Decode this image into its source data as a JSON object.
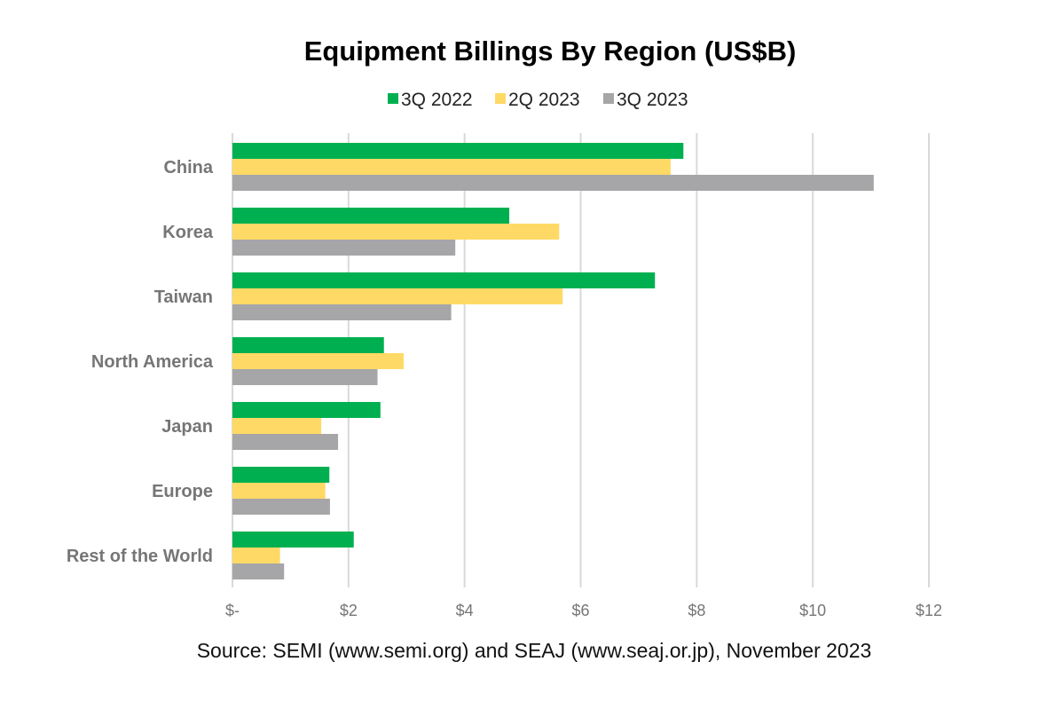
{
  "chart_data": {
    "type": "bar",
    "orientation": "horizontal",
    "title": "Equipment Billings By Region (US$B)",
    "xlabel": "",
    "ylabel": "",
    "categories": [
      "China",
      "Korea",
      "Taiwan",
      "North America",
      "Japan",
      "Europe",
      "Rest of the World"
    ],
    "series": [
      {
        "name": "3Q 2022",
        "color": "#00b050",
        "values": [
          7.77,
          4.77,
          7.28,
          2.61,
          2.55,
          1.67,
          2.09
        ]
      },
      {
        "name": "2Q 2023",
        "color": "#ffd966",
        "values": [
          7.55,
          5.63,
          5.69,
          2.95,
          1.53,
          1.6,
          0.82
        ]
      },
      {
        "name": "3Q 2023",
        "color": "#a6a6a8",
        "values": [
          11.05,
          3.84,
          3.77,
          2.5,
          1.82,
          1.68,
          0.89
        ]
      }
    ],
    "xlim": [
      0,
      12
    ],
    "xticks": [
      0,
      2,
      4,
      6,
      8,
      10,
      12
    ],
    "xtick_labels": [
      "$-",
      "$2",
      "$4",
      "$6",
      "$8",
      "$10",
      "$12"
    ],
    "grid": true,
    "legend_position": "top-center",
    "source": "Source: SEMI (www.semi.org) and SEAJ (www.seaj.or.jp), November 2023"
  }
}
